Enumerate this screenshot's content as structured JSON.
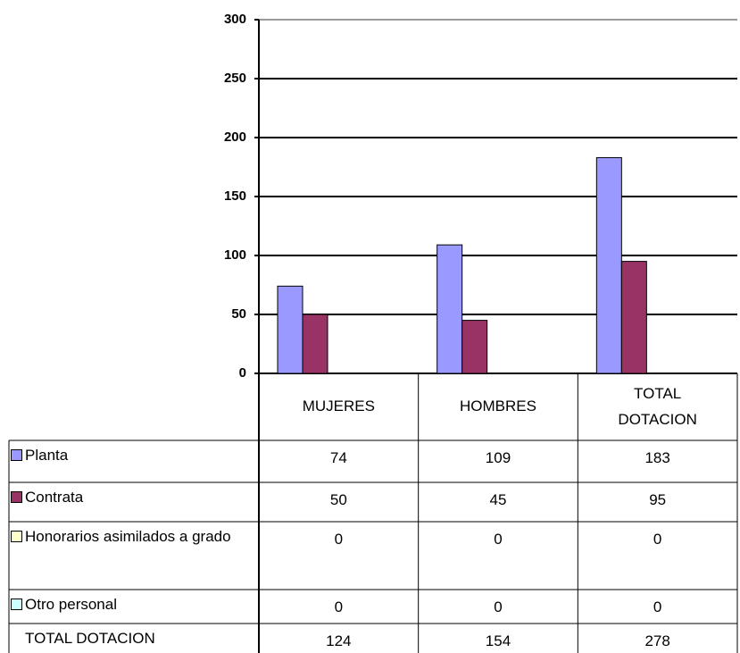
{
  "chart_data": {
    "type": "bar",
    "categories": [
      "MUJERES",
      "HOMBRES",
      "TOTAL DOTACION"
    ],
    "series": [
      {
        "name": "Planta",
        "color": "#9999ff",
        "values": [
          74,
          109,
          183
        ]
      },
      {
        "name": "Contrata",
        "color": "#993366",
        "values": [
          50,
          45,
          95
        ]
      },
      {
        "name": "Honorarios asimilados a grado",
        "color": "#ffffcc",
        "values": [
          0,
          0,
          0
        ]
      },
      {
        "name": "Otro personal",
        "color": "#ccffff",
        "values": [
          0,
          0,
          0
        ]
      }
    ],
    "table_total": {
      "name": "TOTAL DOTACION",
      "values": [
        124,
        154,
        278
      ]
    },
    "ylim": [
      0,
      300
    ],
    "yticks": [
      0,
      50,
      100,
      150,
      200,
      250,
      300
    ],
    "grid": true
  }
}
